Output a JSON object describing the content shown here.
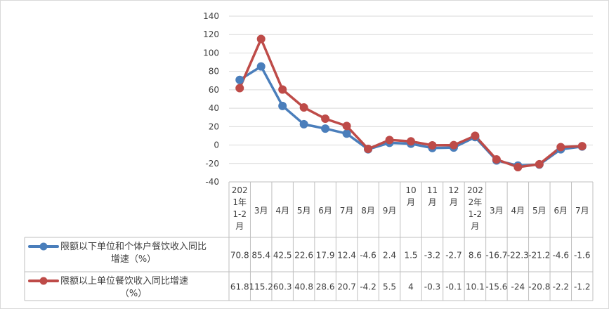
{
  "chart_data": {
    "type": "line",
    "categories": [
      [
        "202",
        "1年",
        "1-2",
        "月"
      ],
      [
        "3月"
      ],
      [
        "4月"
      ],
      [
        "5月"
      ],
      [
        "6月"
      ],
      [
        "7月"
      ],
      [
        "8月"
      ],
      [
        "9月"
      ],
      [
        "10",
        "月"
      ],
      [
        "11",
        "月"
      ],
      [
        "12",
        "月"
      ],
      [
        "202",
        "2年",
        "1-2",
        "月"
      ],
      [
        "3月"
      ],
      [
        "4月"
      ],
      [
        "5月"
      ],
      [
        "6月"
      ],
      [
        "7月"
      ]
    ],
    "y_ticks": [
      "140",
      "120",
      "100",
      "80",
      "60",
      "40",
      "20",
      "0",
      "-20",
      "-40"
    ],
    "ylim": [
      -40,
      140
    ],
    "grid": true,
    "legend_position": "bottom-table",
    "series": [
      {
        "name_lines": [
          "限额以下单位和个体户餐饮收入同比",
          "增速（%）"
        ],
        "color": "#4a7ebb",
        "values": [
          70.8,
          85.4,
          42.5,
          22.6,
          17.9,
          12.4,
          -4.6,
          2.4,
          1.5,
          -3.2,
          -2.7,
          8.6,
          -16.7,
          -22.3,
          -21.2,
          -4.6,
          -1.6
        ],
        "labels": [
          "70.8",
          "85.4",
          "42.5",
          "22.6",
          "17.9",
          "12.4",
          "-4.6",
          "2.4",
          "1.5",
          "-3.2",
          "-2.7",
          "8.6",
          "-16.7",
          "-22.3",
          "-21.2",
          "-4.6",
          "-1.6"
        ]
      },
      {
        "name_lines": [
          "限额以上单位餐饮收入同比增速",
          "（%）"
        ],
        "color": "#be4b48",
        "values": [
          61.8,
          115.2,
          60.3,
          40.8,
          28.6,
          20.7,
          -4.2,
          5.5,
          4,
          -0.3,
          -0.1,
          10.1,
          -15.6,
          -24,
          -20.8,
          -2.2,
          -1.2
        ],
        "labels": [
          "61.8",
          "115.2",
          "60.3",
          "40.8",
          "28.6",
          "20.7",
          "-4.2",
          "5.5",
          "4",
          "-0.3",
          "-0.1",
          "10.1",
          "-15.6",
          "-24",
          "-20.8",
          "-2.2",
          "-1.2"
        ]
      }
    ]
  }
}
